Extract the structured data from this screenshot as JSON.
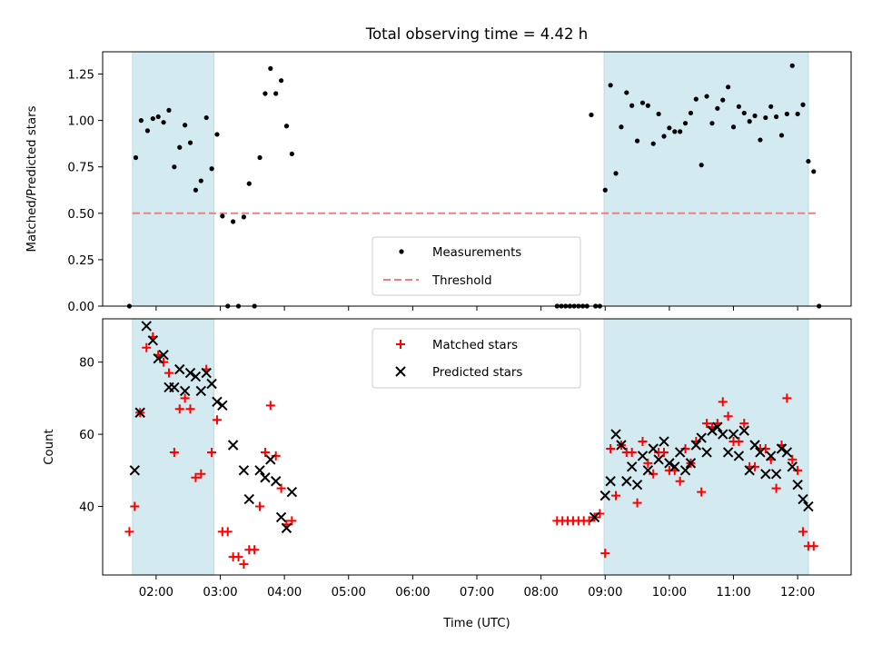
{
  "chart_data": [
    {
      "type": "scatter",
      "title": "Total observing time = 4.42 h",
      "xlabel": "",
      "ylabel": "Matched/Predicted stars",
      "xlim": [
        "01:10",
        "12:50"
      ],
      "ylim": [
        0,
        1.37
      ],
      "yticks": [
        "0.00",
        "0.25",
        "0.50",
        "0.75",
        "1.00",
        "1.25"
      ],
      "grid": false,
      "legend_position": "lower center",
      "shaded_intervals": [
        [
          "01:38",
          "02:54"
        ],
        [
          "08:59",
          "12:10"
        ]
      ],
      "threshold": {
        "name": "Threshold",
        "value": 0.5,
        "x_range": [
          "01:38",
          "12:18"
        ],
        "color": "#f08080"
      },
      "series": [
        {
          "name": "Measurements",
          "marker": "dot",
          "color": "#000000",
          "points": [
            [
              "01:35",
              0.0
            ],
            [
              "01:41",
              0.8
            ],
            [
              "01:46",
              1.0
            ],
            [
              "01:52",
              0.945
            ],
            [
              "01:57",
              1.01
            ],
            [
              "02:02",
              1.02
            ],
            [
              "02:07",
              0.99
            ],
            [
              "02:12",
              1.055
            ],
            [
              "02:17",
              0.75
            ],
            [
              "02:22",
              0.855
            ],
            [
              "02:27",
              0.975
            ],
            [
              "02:32",
              0.88
            ],
            [
              "02:37",
              0.625
            ],
            [
              "02:42",
              0.675
            ],
            [
              "02:47",
              1.015
            ],
            [
              "02:52",
              0.74
            ],
            [
              "02:57",
              0.925
            ],
            [
              "03:02",
              0.485
            ],
            [
              "03:07",
              0.0
            ],
            [
              "03:12",
              0.455
            ],
            [
              "03:17",
              0.0
            ],
            [
              "03:22",
              0.48
            ],
            [
              "03:27",
              0.66
            ],
            [
              "03:32",
              0.0
            ],
            [
              "03:37",
              0.8
            ],
            [
              "03:42",
              1.145
            ],
            [
              "03:47",
              1.28
            ],
            [
              "03:52",
              1.145
            ],
            [
              "03:57",
              1.215
            ],
            [
              "04:02",
              0.97
            ],
            [
              "04:07",
              0.82
            ],
            [
              "08:15",
              0.0
            ],
            [
              "08:19",
              0.0
            ],
            [
              "08:23",
              0.0
            ],
            [
              "08:27",
              0.0
            ],
            [
              "08:31",
              0.0
            ],
            [
              "08:35",
              0.0
            ],
            [
              "08:39",
              0.0
            ],
            [
              "08:43",
              0.0
            ],
            [
              "08:47",
              1.03
            ],
            [
              "08:51",
              0.0
            ],
            [
              "08:55",
              0.0
            ],
            [
              "09:00",
              0.625
            ],
            [
              "09:05",
              1.19
            ],
            [
              "09:10",
              0.715
            ],
            [
              "09:15",
              0.965
            ],
            [
              "09:20",
              1.15
            ],
            [
              "09:25",
              1.08
            ],
            [
              "09:30",
              0.89
            ],
            [
              "09:35",
              1.095
            ],
            [
              "09:40",
              1.08
            ],
            [
              "09:45",
              0.875
            ],
            [
              "09:50",
              1.035
            ],
            [
              "09:55",
              0.915
            ],
            [
              "10:00",
              0.96
            ],
            [
              "10:05",
              0.94
            ],
            [
              "10:10",
              0.94
            ],
            [
              "10:15",
              0.985
            ],
            [
              "10:20",
              1.04
            ],
            [
              "10:25",
              1.115
            ],
            [
              "10:30",
              0.76
            ],
            [
              "10:35",
              1.13
            ],
            [
              "10:40",
              0.985
            ],
            [
              "10:45",
              1.065
            ],
            [
              "10:50",
              1.11
            ],
            [
              "10:55",
              1.18
            ],
            [
              "11:00",
              0.965
            ],
            [
              "11:05",
              1.075
            ],
            [
              "11:10",
              1.04
            ],
            [
              "11:15",
              0.995
            ],
            [
              "11:20",
              1.025
            ],
            [
              "11:25",
              0.895
            ],
            [
              "11:30",
              1.015
            ],
            [
              "11:35",
              1.075
            ],
            [
              "11:40",
              1.02
            ],
            [
              "11:45",
              0.92
            ],
            [
              "11:50",
              1.035
            ],
            [
              "11:55",
              1.295
            ],
            [
              "12:00",
              1.035
            ],
            [
              "12:05",
              1.085
            ],
            [
              "12:10",
              0.78
            ],
            [
              "12:15",
              0.725
            ],
            [
              "12:20",
              0.0
            ]
          ]
        }
      ]
    },
    {
      "type": "scatter",
      "title": "",
      "xlabel": "Time (UTC)",
      "ylabel": "Count",
      "xlim": [
        "01:10",
        "12:50"
      ],
      "ylim": [
        21,
        92
      ],
      "xticks": [
        "02:00",
        "03:00",
        "04:00",
        "05:00",
        "06:00",
        "07:00",
        "08:00",
        "09:00",
        "10:00",
        "11:00",
        "12:00"
      ],
      "yticks": [
        "40",
        "60",
        "80"
      ],
      "grid": false,
      "legend_position": "upper center",
      "shaded_intervals": [
        [
          "01:38",
          "02:54"
        ],
        [
          "08:59",
          "12:10"
        ]
      ],
      "series": [
        {
          "name": "Matched stars",
          "marker": "plus",
          "color": "#ff0000",
          "points": [
            [
              "01:35",
              33
            ],
            [
              "01:40",
              40
            ],
            [
              "01:45",
              66
            ],
            [
              "01:51",
              84
            ],
            [
              "01:57",
              87
            ],
            [
              "02:02",
              82
            ],
            [
              "02:07",
              80
            ],
            [
              "02:12",
              77
            ],
            [
              "02:17",
              55
            ],
            [
              "02:22",
              67
            ],
            [
              "02:27",
              70
            ],
            [
              "02:32",
              67
            ],
            [
              "02:37",
              48
            ],
            [
              "02:42",
              49
            ],
            [
              "02:47",
              78
            ],
            [
              "02:52",
              55
            ],
            [
              "02:57",
              64
            ],
            [
              "03:02",
              33
            ],
            [
              "03:07",
              33
            ],
            [
              "03:12",
              26
            ],
            [
              "03:17",
              26
            ],
            [
              "03:22",
              24
            ],
            [
              "03:27",
              28
            ],
            [
              "03:32",
              28
            ],
            [
              "03:37",
              40
            ],
            [
              "03:42",
              55
            ],
            [
              "03:47",
              68
            ],
            [
              "03:52",
              54
            ],
            [
              "03:57",
              45
            ],
            [
              "04:02",
              35
            ],
            [
              "04:07",
              36
            ],
            [
              "08:15",
              36
            ],
            [
              "08:20",
              36
            ],
            [
              "08:25",
              36
            ],
            [
              "08:30",
              36
            ],
            [
              "08:35",
              36
            ],
            [
              "08:40",
              36
            ],
            [
              "08:45",
              36
            ],
            [
              "08:50",
              37
            ],
            [
              "08:55",
              38
            ],
            [
              "09:00",
              27
            ],
            [
              "09:05",
              56
            ],
            [
              "09:10",
              43
            ],
            [
              "09:15",
              57
            ],
            [
              "09:20",
              55
            ],
            [
              "09:25",
              55
            ],
            [
              "09:30",
              41
            ],
            [
              "09:35",
              58
            ],
            [
              "09:40",
              52
            ],
            [
              "09:45",
              49
            ],
            [
              "09:50",
              55
            ],
            [
              "09:55",
              55
            ],
            [
              "10:00",
              50
            ],
            [
              "10:05",
              50
            ],
            [
              "10:10",
              47
            ],
            [
              "10:15",
              56
            ],
            [
              "10:20",
              52
            ],
            [
              "10:25",
              58
            ],
            [
              "10:30",
              44
            ],
            [
              "10:35",
              63
            ],
            [
              "10:40",
              62
            ],
            [
              "10:45",
              63
            ],
            [
              "10:50",
              69
            ],
            [
              "10:55",
              65
            ],
            [
              "11:00",
              58
            ],
            [
              "11:05",
              58
            ],
            [
              "11:10",
              63
            ],
            [
              "11:15",
              51
            ],
            [
              "11:20",
              51
            ],
            [
              "11:25",
              56
            ],
            [
              "11:30",
              56
            ],
            [
              "11:35",
              53
            ],
            [
              "11:40",
              45
            ],
            [
              "11:45",
              57
            ],
            [
              "11:50",
              70
            ],
            [
              "11:55",
              53
            ],
            [
              "12:00",
              50
            ],
            [
              "12:05",
              33
            ],
            [
              "12:10",
              29
            ],
            [
              "12:15",
              29
            ]
          ]
        },
        {
          "name": "Predicted stars",
          "marker": "x",
          "color": "#000000",
          "points": [
            [
              "01:40",
              50
            ],
            [
              "01:45",
              66
            ],
            [
              "01:51",
              90
            ],
            [
              "01:57",
              86
            ],
            [
              "02:02",
              81
            ],
            [
              "02:07",
              82
            ],
            [
              "02:12",
              73
            ],
            [
              "02:17",
              73
            ],
            [
              "02:22",
              78
            ],
            [
              "02:27",
              72
            ],
            [
              "02:32",
              77
            ],
            [
              "02:37",
              76
            ],
            [
              "02:42",
              72
            ],
            [
              "02:47",
              77
            ],
            [
              "02:52",
              74
            ],
            [
              "02:57",
              69
            ],
            [
              "03:02",
              68
            ],
            [
              "03:12",
              57
            ],
            [
              "03:22",
              50
            ],
            [
              "03:27",
              42
            ],
            [
              "03:37",
              50
            ],
            [
              "03:42",
              48
            ],
            [
              "03:47",
              53
            ],
            [
              "03:52",
              47
            ],
            [
              "03:57",
              37
            ],
            [
              "04:02",
              34
            ],
            [
              "04:07",
              44
            ],
            [
              "08:50",
              37
            ],
            [
              "09:00",
              43
            ],
            [
              "09:05",
              47
            ],
            [
              "09:10",
              60
            ],
            [
              "09:15",
              57
            ],
            [
              "09:20",
              47
            ],
            [
              "09:25",
              51
            ],
            [
              "09:30",
              46
            ],
            [
              "09:35",
              54
            ],
            [
              "09:40",
              50
            ],
            [
              "09:45",
              56
            ],
            [
              "09:50",
              53
            ],
            [
              "09:55",
              58
            ],
            [
              "10:00",
              52
            ],
            [
              "10:05",
              51
            ],
            [
              "10:10",
              55
            ],
            [
              "10:15",
              50
            ],
            [
              "10:20",
              52
            ],
            [
              "10:25",
              57
            ],
            [
              "10:30",
              59
            ],
            [
              "10:35",
              55
            ],
            [
              "10:40",
              61
            ],
            [
              "10:45",
              62
            ],
            [
              "10:50",
              60
            ],
            [
              "10:55",
              55
            ],
            [
              "11:00",
              60
            ],
            [
              "11:05",
              54
            ],
            [
              "11:10",
              61
            ],
            [
              "11:15",
              50
            ],
            [
              "11:20",
              57
            ],
            [
              "11:25",
              55
            ],
            [
              "11:30",
              49
            ],
            [
              "11:35",
              54
            ],
            [
              "11:40",
              49
            ],
            [
              "11:45",
              56
            ],
            [
              "11:50",
              55
            ],
            [
              "11:55",
              51
            ],
            [
              "12:00",
              46
            ],
            [
              "12:05",
              42
            ],
            [
              "12:10",
              40
            ]
          ]
        }
      ]
    }
  ],
  "colors": {
    "shade": "#d3eaf0",
    "shade_edge": "#b7dbe5",
    "axes": "#000000",
    "threshold": "#f08080",
    "matched": "#ff0000",
    "predicted": "#000000",
    "measurement": "#000000"
  }
}
